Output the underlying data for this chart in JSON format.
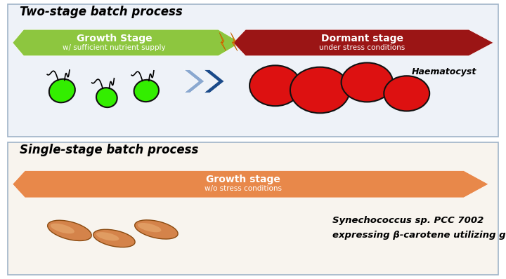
{
  "title_top": "Two-stage batch process",
  "title_bottom": "Single-stage batch process",
  "arrow1_label": "Growth Stage",
  "arrow1_sub": "w/ sufficient nutrient supply",
  "arrow1_color_top": "#8dc63f",
  "arrow1_color_bot": "#5a9e1a",
  "arrow2_label": "Dormant stage",
  "arrow2_sub": "under stress conditions",
  "arrow2_color_top": "#e83030",
  "arrow2_color_bot": "#9b1515",
  "arrow3_label": "Growth stage",
  "arrow3_sub": "w/o stress conditions",
  "arrow3_color_top": "#e8884a",
  "arrow3_color_bot": "#c05c1a",
  "haematocyst_label": "Haematocyst",
  "bacteria_label_line1": "Synechococcus sp. PCC 7002",
  "bacteria_label_line2": "expressing β-carotene utilizing genes",
  "bg_top": "#eef2f8",
  "bg_bottom": "#f8f4ee",
  "border_color": "#a0b4c8",
  "cell_green": "#33ee00",
  "cell_green_dark": "#1a8800",
  "cell_red": "#dd1111",
  "cell_red_dark": "#220000",
  "chevron_front": "#1a4a8a",
  "chevron_back": "#8aa8d0",
  "bacteria_color": "#d4834a",
  "bacteria_highlight": "#e8aa70",
  "lightning_color": "#f0920a"
}
